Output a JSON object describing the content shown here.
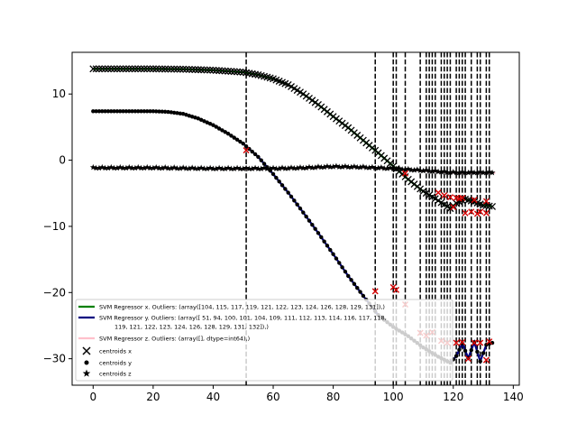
{
  "chart_data": {
    "type": "scatter",
    "xlim": [
      -7,
      142
    ],
    "ylim": [
      -34,
      16.3
    ],
    "x_ticks": [
      0,
      20,
      40,
      60,
      80,
      100,
      120,
      140
    ],
    "y_ticks": [
      10,
      0,
      -10,
      -20,
      -30
    ],
    "grid": false,
    "legend_position": "lower-left",
    "vlines_x": [
      51,
      94,
      100,
      101,
      104,
      109,
      111,
      112,
      113,
      114,
      116,
      117,
      118,
      119,
      121,
      122,
      123,
      124,
      126,
      128,
      129,
      131,
      132
    ],
    "series": [
      {
        "name": "SVM Regressor x. Outliers: (array([104, 115, 117, 119, 121, 122, 123, 124, 126, 128, 129, 131]),)",
        "color": "#008000",
        "line": [
          [
            0,
            13.8
          ],
          [
            10,
            13.8
          ],
          [
            20,
            13.8
          ],
          [
            30,
            13.75
          ],
          [
            40,
            13.6
          ],
          [
            50,
            13.3
          ],
          [
            55,
            12.9
          ],
          [
            60,
            12.3
          ],
          [
            65,
            11.4
          ],
          [
            70,
            10.0
          ],
          [
            75,
            8.4
          ],
          [
            80,
            6.6
          ],
          [
            85,
            4.9
          ],
          [
            90,
            3.0
          ],
          [
            95,
            1.1
          ],
          [
            100,
            -0.9
          ],
          [
            105,
            -2.9
          ],
          [
            110,
            -4.7
          ],
          [
            115,
            -6.1
          ],
          [
            119,
            -7.3
          ],
          [
            121,
            -6.5
          ],
          [
            124,
            -5.9
          ],
          [
            127,
            -6.3
          ],
          [
            130,
            -6.8
          ],
          [
            133,
            -7.0
          ]
        ]
      },
      {
        "name": "SVM Regressor y. Outliers: (array([ 51,  94, 100, 101, 104, 109, 111, 112, 113, 114, 116, 117, 118,\n       119, 121, 122, 123, 124, 126, 128, 129, 131, 132]),)",
        "color": "#000080",
        "line": [
          [
            0,
            7.4
          ],
          [
            10,
            7.4
          ],
          [
            20,
            7.4
          ],
          [
            25,
            7.3
          ],
          [
            30,
            7.0
          ],
          [
            35,
            6.3
          ],
          [
            40,
            5.3
          ],
          [
            45,
            4.0
          ],
          [
            50,
            2.5
          ],
          [
            55,
            0.5
          ],
          [
            60,
            -2.1
          ],
          [
            65,
            -4.9
          ],
          [
            70,
            -7.9
          ],
          [
            75,
            -11.0
          ],
          [
            80,
            -14.2
          ],
          [
            85,
            -17.5
          ],
          [
            90,
            -20.5
          ],
          [
            95,
            -23.4
          ],
          [
            100,
            -25.2
          ],
          [
            105,
            -26.6
          ],
          [
            110,
            -28.3
          ],
          [
            115,
            -29.7
          ],
          [
            119,
            -30.6
          ],
          [
            121,
            -29.6
          ],
          [
            123,
            -27.7
          ],
          [
            125,
            -29.9
          ],
          [
            127,
            -27.5
          ],
          [
            129,
            -30.4
          ],
          [
            131,
            -27.9
          ],
          [
            133,
            -27.6
          ]
        ]
      },
      {
        "name": "SVM Regressor z. Outliers: (array([], dtype=int64),)",
        "color": "#ffc0cb",
        "line": [
          [
            0,
            -1.2
          ],
          [
            20,
            -1.2
          ],
          [
            40,
            -1.3
          ],
          [
            60,
            -1.3
          ],
          [
            70,
            -1.2
          ],
          [
            80,
            -1.0
          ],
          [
            90,
            -1.1
          ],
          [
            100,
            -1.3
          ],
          [
            110,
            -1.6
          ],
          [
            120,
            -1.9
          ],
          [
            134,
            -1.9
          ]
        ]
      }
    ],
    "markers": [
      {
        "name": "centroids x",
        "shape": "x"
      },
      {
        "name": "centroids y",
        "shape": "dot"
      },
      {
        "name": "centroids z",
        "shape": "star"
      }
    ],
    "outliers": [
      [
        51,
        1.5
      ],
      [
        94,
        -19.8
      ],
      [
        100,
        -19.2
      ],
      [
        101,
        -19.6
      ],
      [
        104,
        -21.8
      ],
      [
        109,
        -26.1
      ],
      [
        111,
        -26.5
      ],
      [
        113,
        -26.0
      ],
      [
        116,
        -27.3
      ],
      [
        118,
        -27.6
      ],
      [
        121,
        -27.6
      ],
      [
        123,
        -27.5
      ],
      [
        125,
        -30.0
      ],
      [
        127,
        -27.6
      ],
      [
        129,
        -27.6
      ],
      [
        131,
        -30.2
      ],
      [
        132,
        -27.4
      ],
      [
        104,
        -2.0
      ],
      [
        115,
        -4.9
      ],
      [
        117,
        -5.3
      ],
      [
        119,
        -5.6
      ],
      [
        121,
        -5.7
      ],
      [
        122,
        -5.8
      ],
      [
        123,
        -5.7
      ],
      [
        124,
        -8.0
      ],
      [
        126,
        -7.8
      ],
      [
        128,
        -8.1
      ],
      [
        129,
        -7.8
      ],
      [
        131,
        -8.0
      ],
      [
        131,
        -6.2
      ],
      [
        127,
        -6.0
      ],
      [
        120,
        -7.1
      ]
    ]
  }
}
